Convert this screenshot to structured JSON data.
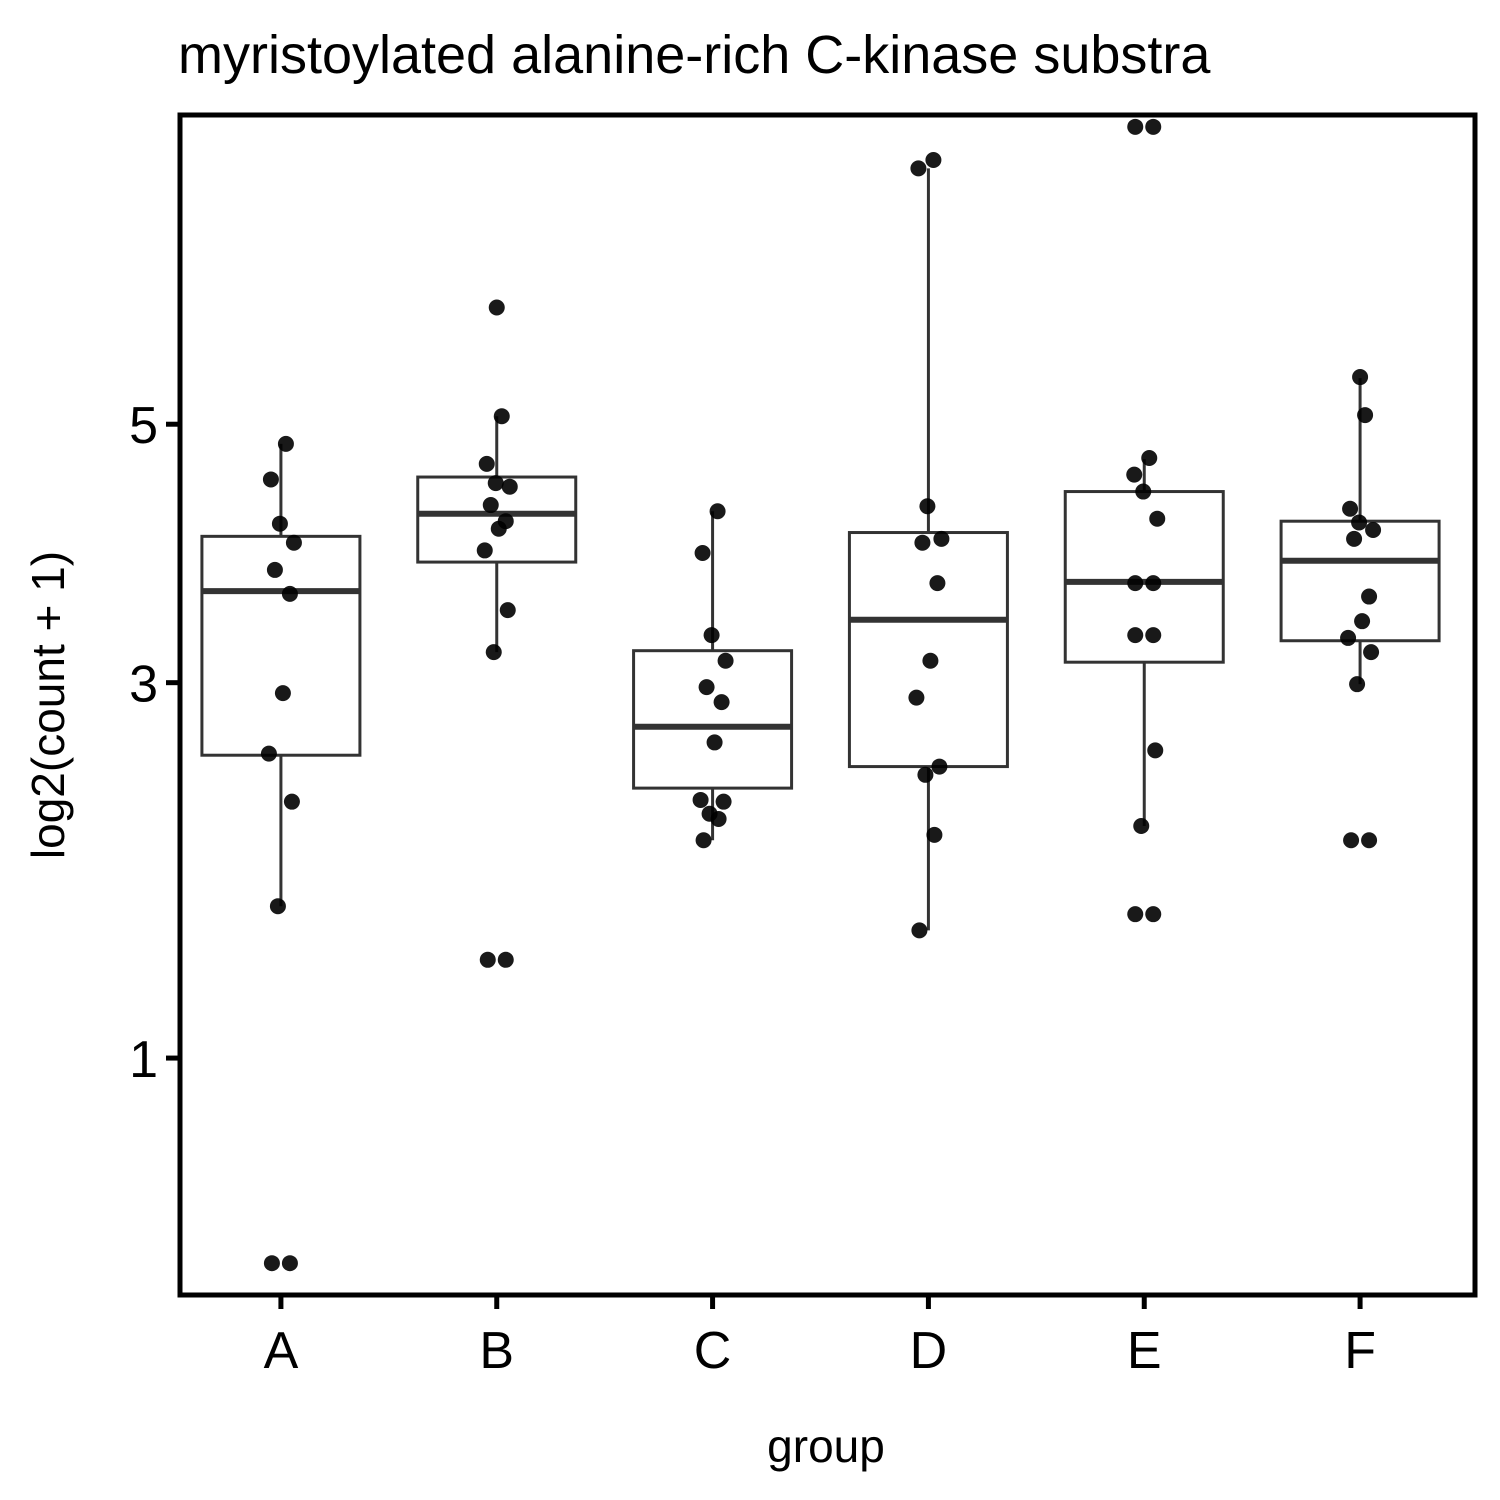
{
  "chart_data": {
    "type": "box",
    "title": "myristoylated alanine-rich C-kinase substra",
    "xlabel": "group",
    "ylabel": "log2(count + 1)",
    "y_scale": "sqrt",
    "y_ticks": [
      1,
      3,
      5
    ],
    "ylim": [
      0.3,
      7.95
    ],
    "categories": [
      "A",
      "B",
      "C",
      "D",
      "E",
      "F"
    ],
    "boxes": [
      {
        "group": "A",
        "q1": 2.53,
        "median": 3.65,
        "q3": 4.07,
        "whisker_low": 1.68,
        "whisker_high": 4.83
      },
      {
        "group": "B",
        "q1": 3.87,
        "median": 4.25,
        "q3": 4.55,
        "whisker_low": 3.21,
        "whisker_high": 5.07
      },
      {
        "group": "C",
        "q1": 2.33,
        "median": 2.71,
        "q3": 3.22,
        "whisker_low": 2.03,
        "whisker_high": 4.27
      },
      {
        "group": "D",
        "q1": 2.46,
        "median": 3.44,
        "q3": 4.1,
        "whisker_low": 1.56,
        "whisker_high": 7.48
      },
      {
        "group": "E",
        "q1": 3.14,
        "median": 3.72,
        "q3": 4.43,
        "whisker_low": 2.11,
        "whisker_high": 4.7
      },
      {
        "group": "F",
        "q1": 3.29,
        "median": 3.88,
        "q3": 4.19,
        "whisker_low": 2.99,
        "whisker_high": 5.41
      }
    ],
    "points": [
      {
        "group": "A",
        "values": [
          0.36,
          0.36,
          1.68,
          2.25,
          2.54,
          2.93,
          3.63,
          3.81,
          4.02,
          4.17,
          4.53,
          4.83
        ]
      },
      {
        "group": "B",
        "values": [
          1.42,
          1.42,
          3.21,
          3.51,
          3.96,
          4.13,
          4.19,
          4.32,
          4.47,
          4.5,
          4.66,
          5.07,
          6.07
        ]
      },
      {
        "group": "C",
        "values": [
          2.03,
          2.15,
          2.18,
          2.25,
          2.26,
          2.61,
          2.87,
          2.97,
          3.15,
          3.33,
          3.94,
          4.27
        ]
      },
      {
        "group": "D",
        "values": [
          1.56,
          2.06,
          2.41,
          2.46,
          2.9,
          3.15,
          3.71,
          4.02,
          4.05,
          4.31,
          7.48,
          7.57
        ]
      },
      {
        "group": "E",
        "values": [
          1.64,
          1.64,
          2.11,
          2.56,
          3.33,
          3.33,
          3.71,
          3.71,
          4.21,
          4.43,
          4.57,
          4.71,
          7.93,
          7.93
        ]
      },
      {
        "group": "F",
        "values": [
          2.03,
          2.03,
          2.99,
          3.21,
          3.31,
          3.43,
          3.61,
          4.05,
          4.12,
          4.18,
          4.29,
          5.08,
          5.42
        ]
      }
    ]
  }
}
